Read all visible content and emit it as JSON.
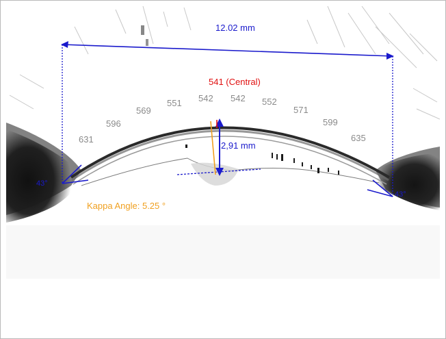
{
  "measurements": {
    "anterior_chamber_width": "12.02 mm",
    "central_thickness": "541 (Central)",
    "anterior_chamber_depth": "2,91 mm",
    "kappa_angle": "Kappa Angle: 5.25 °",
    "angle_left": "43°",
    "angle_right": "43°"
  },
  "thickness_profile": [
    "631",
    "596",
    "569",
    "551",
    "542",
    "542",
    "552",
    "571",
    "599",
    "635"
  ],
  "colors": {
    "measurement_blue": "#1a1acc",
    "central_red": "#e01010",
    "kappa_orange": "#f0a020",
    "thickness_gray": "#8a8a8a",
    "tissue_dark": "#1a1a1a"
  }
}
